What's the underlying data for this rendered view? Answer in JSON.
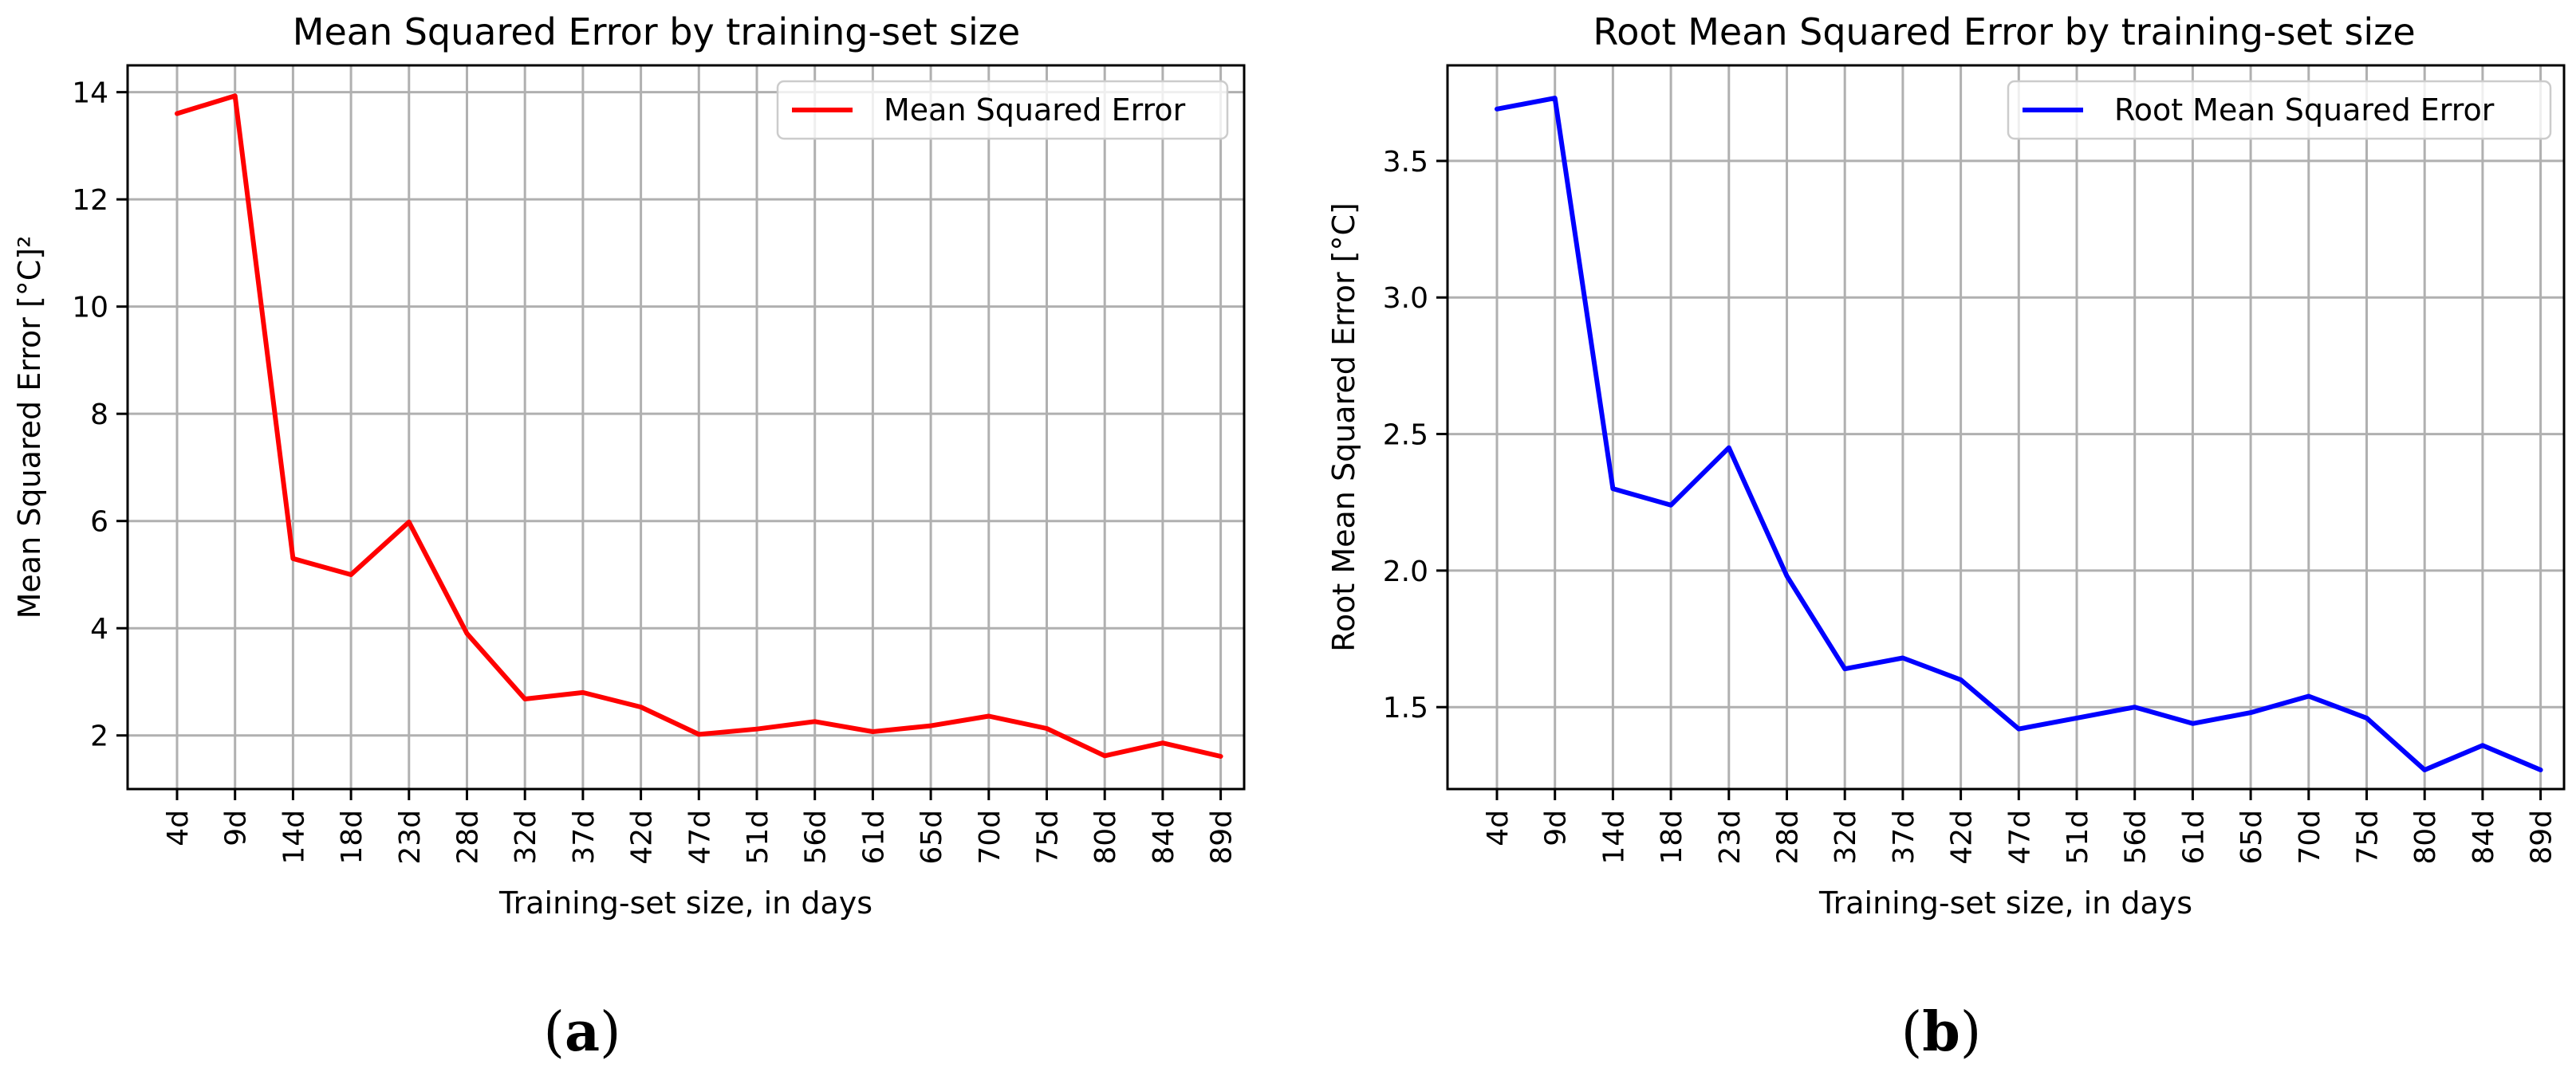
{
  "chart_data": [
    {
      "type": "line",
      "title": "Mean Squared Error by training-set size",
      "xlabel": "Training-set size, in days",
      "ylabel": "Mean Squared Error [°C]²",
      "categories": [
        "4d",
        "9d",
        "14d",
        "18d",
        "23d",
        "28d",
        "32d",
        "37d",
        "42d",
        "47d",
        "51d",
        "56d",
        "61d",
        "65d",
        "70d",
        "75d",
        "80d",
        "84d",
        "89d"
      ],
      "series": [
        {
          "name": "Mean Squared Error",
          "color": "#ff0000",
          "values": [
            13.6,
            13.93,
            5.3,
            5.0,
            5.98,
            3.9,
            2.68,
            2.8,
            2.53,
            2.02,
            2.12,
            2.26,
            2.07,
            2.18,
            2.36,
            2.13,
            1.62,
            1.86,
            1.61
          ]
        }
      ],
      "ylim": [
        1.0,
        14.5
      ],
      "yticks": [
        2,
        4,
        6,
        8,
        10,
        12,
        14
      ],
      "grid": true,
      "legend": "top-right",
      "panel_label": "(a)"
    },
    {
      "type": "line",
      "title": "Root Mean Squared Error by training-set size",
      "xlabel": "Training-set size, in days",
      "ylabel": "Root Mean Squared Error [°C]",
      "categories": [
        "4d",
        "9d",
        "14d",
        "18d",
        "23d",
        "28d",
        "32d",
        "37d",
        "42d",
        "47d",
        "51d",
        "56d",
        "61d",
        "65d",
        "70d",
        "75d",
        "80d",
        "84d",
        "89d"
      ],
      "series": [
        {
          "name": "Root Mean Squared Error",
          "color": "#0000ff",
          "values": [
            3.69,
            3.73,
            2.3,
            2.24,
            2.45,
            1.98,
            1.64,
            1.68,
            1.6,
            1.42,
            1.46,
            1.5,
            1.44,
            1.48,
            1.54,
            1.46,
            1.27,
            1.36,
            1.27
          ]
        }
      ],
      "ylim": [
        1.2,
        3.85
      ],
      "yticks": [
        1.5,
        2.0,
        2.5,
        3.0,
        3.5
      ],
      "grid": true,
      "legend": "top-right",
      "panel_label": "(b)"
    }
  ]
}
